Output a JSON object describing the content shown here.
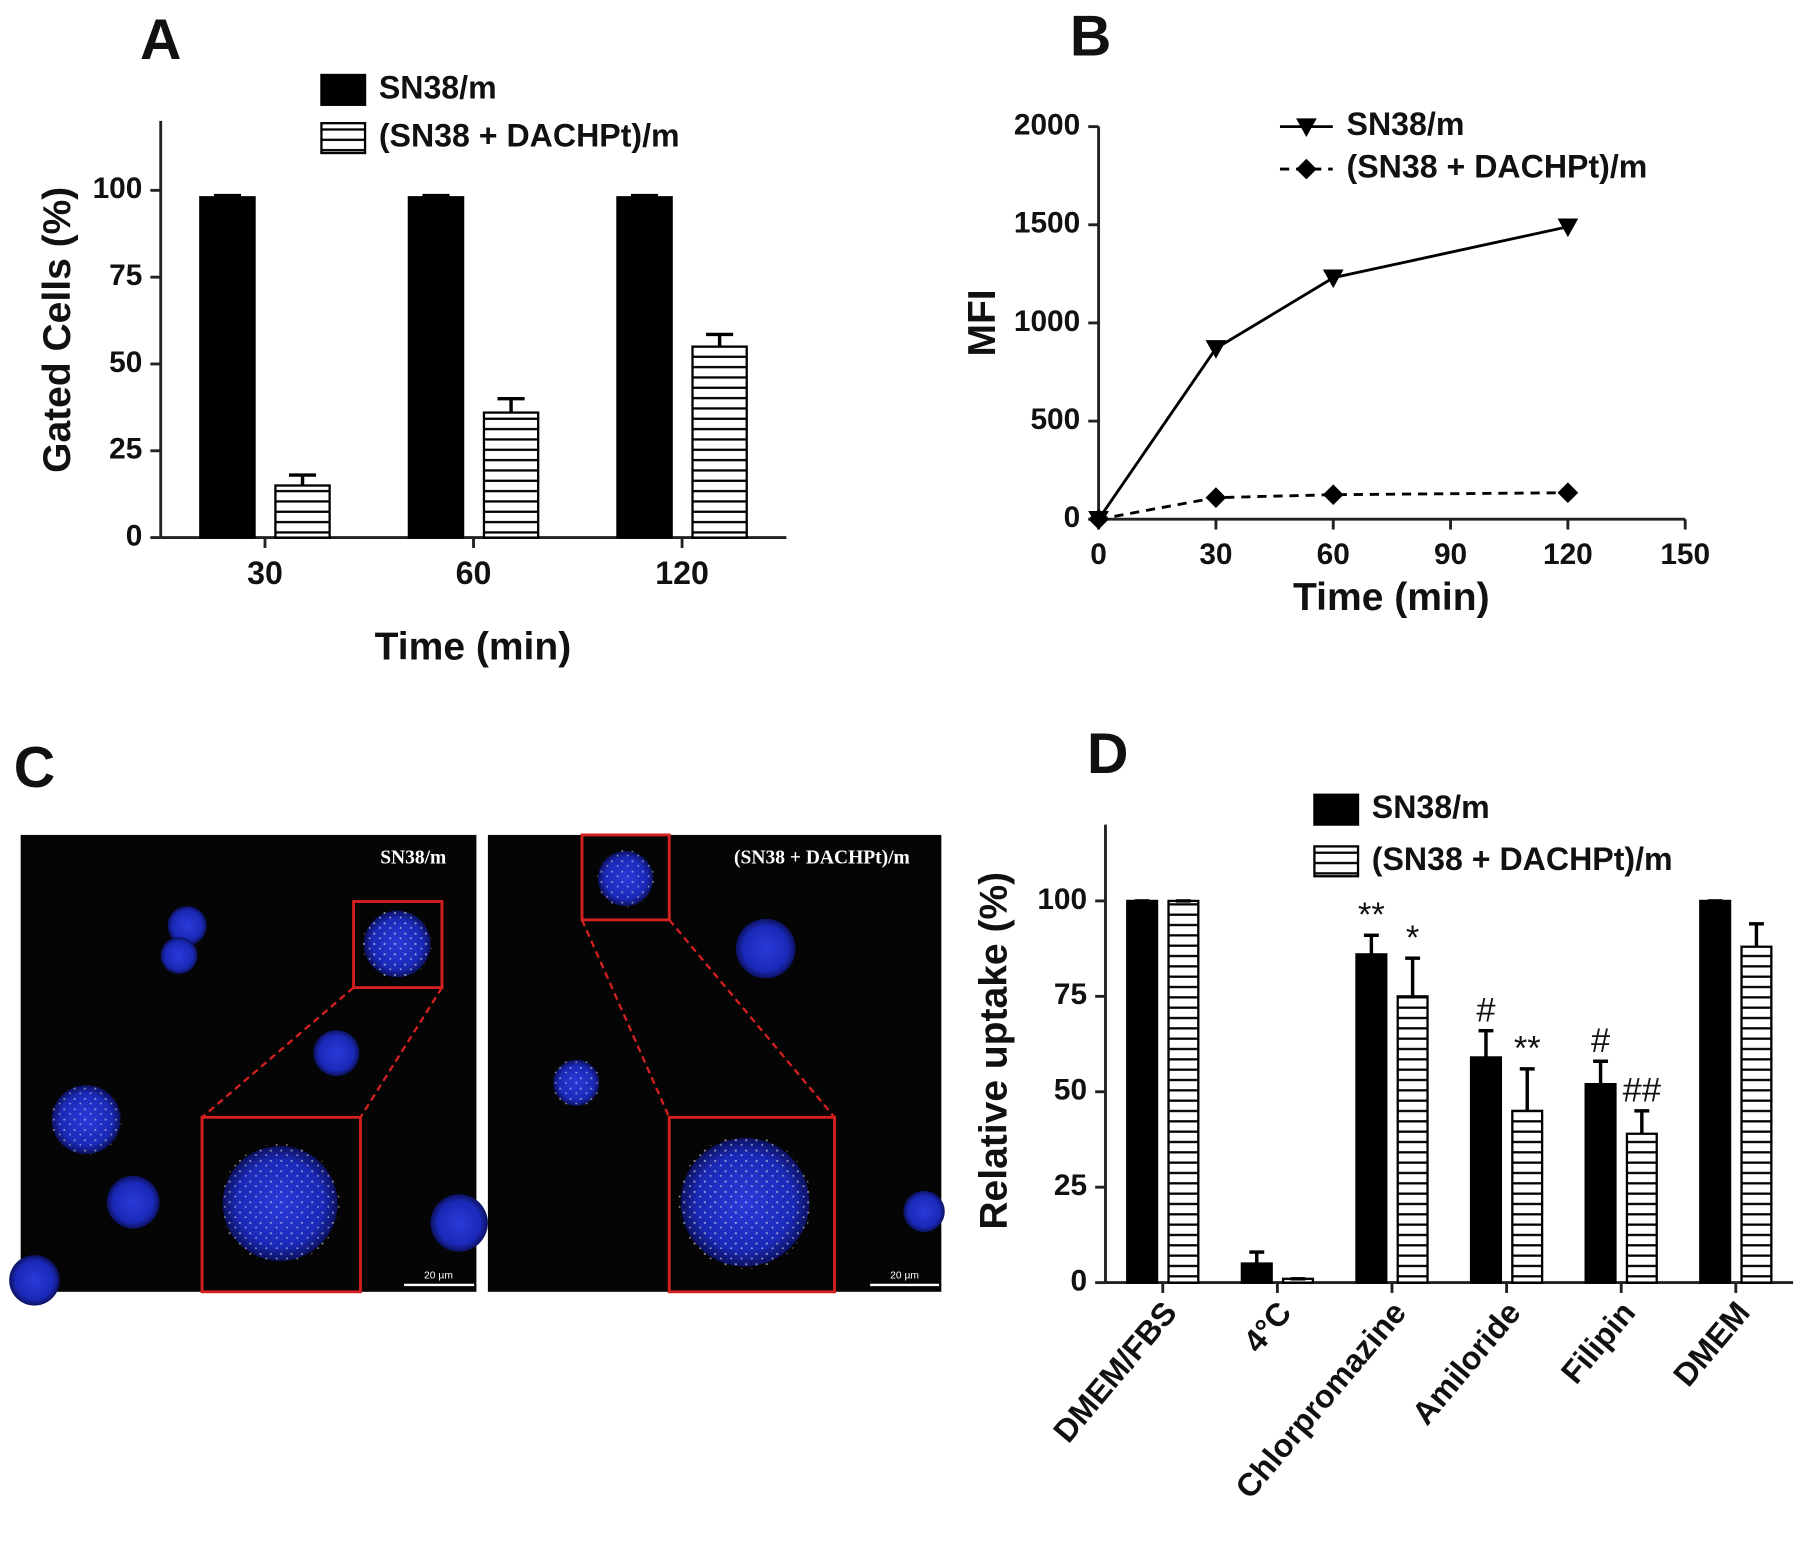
{
  "chart_data": [
    {
      "type": "bar",
      "panel_label": "A",
      "x_label": "Time (min)",
      "y_label": "Gated Cells (%)",
      "categories": [
        "30",
        "60",
        "120"
      ],
      "series": [
        {
          "name": "SN38/m",
          "color": "#000000",
          "fill": "solid",
          "values": [
            98,
            98,
            98
          ],
          "errors": [
            0.5,
            0.5,
            0.5
          ]
        },
        {
          "name": "(SN38 + DACHPt)/m",
          "color": "#000000",
          "fill": "horizontal-hatch",
          "values": [
            15,
            36,
            55
          ],
          "errors": [
            3,
            4,
            3.5
          ]
        }
      ],
      "ylim": [
        0,
        120
      ],
      "yticks": [
        0,
        25,
        50,
        75,
        100
      ],
      "legend": "upper center"
    },
    {
      "type": "line",
      "panel_label": "B",
      "x_label": "Time (min)",
      "y_label": "MFI",
      "x": [
        0,
        30,
        60,
        120
      ],
      "series": [
        {
          "name": "SN38/m",
          "color": "#000000",
          "marker": "triangle-down",
          "line_style": "solid",
          "values": [
            0,
            870,
            1230,
            1490
          ]
        },
        {
          "name": "(SN38 + DACHPt)/m",
          "color": "#000000",
          "marker": "diamond",
          "line_style": "dashed",
          "values": [
            0,
            110,
            125,
            135
          ]
        }
      ],
      "xlim": [
        0,
        150
      ],
      "xticks": [
        0,
        30,
        60,
        90,
        120,
        150
      ],
      "ylim": [
        0,
        2000
      ],
      "yticks": [
        0,
        500,
        1000,
        1500,
        2000
      ],
      "legend": "upper center"
    },
    {
      "type": "bar",
      "panel_label": "D",
      "y_label": "Relative uptake (%)",
      "categories": [
        "DMEM/FBS",
        "4°C",
        "Chlorpromazine",
        "Amiloride",
        "Filipin",
        "DMEM"
      ],
      "series": [
        {
          "name": "SN38/m",
          "color": "#000000",
          "fill": "solid",
          "values": [
            100,
            5,
            86,
            59,
            52,
            100
          ],
          "errors": [
            0,
            3,
            5,
            7,
            6,
            0
          ],
          "significance": [
            null,
            null,
            "**",
            "#",
            "#",
            null
          ]
        },
        {
          "name": "(SN38 + DACHPt)/m",
          "color": "#000000",
          "fill": "horizontal-hatch",
          "values": [
            100,
            1,
            75,
            45,
            39,
            88
          ],
          "errors": [
            0,
            0,
            10,
            11,
            6,
            6
          ],
          "significance": [
            null,
            null,
            "*",
            "**",
            "##",
            null
          ]
        }
      ],
      "ylim": [
        0,
        120
      ],
      "yticks": [
        0,
        25,
        50,
        75,
        100
      ],
      "legend": "upper right",
      "rotate_x_labels": true
    }
  ],
  "panel_c": {
    "panel_label": "C",
    "images": [
      {
        "label": "SN38/m",
        "scale_bar": "20 µm"
      },
      {
        "label": "(SN38 + DACHPt)/m",
        "scale_bar": "20 µm"
      }
    ]
  }
}
